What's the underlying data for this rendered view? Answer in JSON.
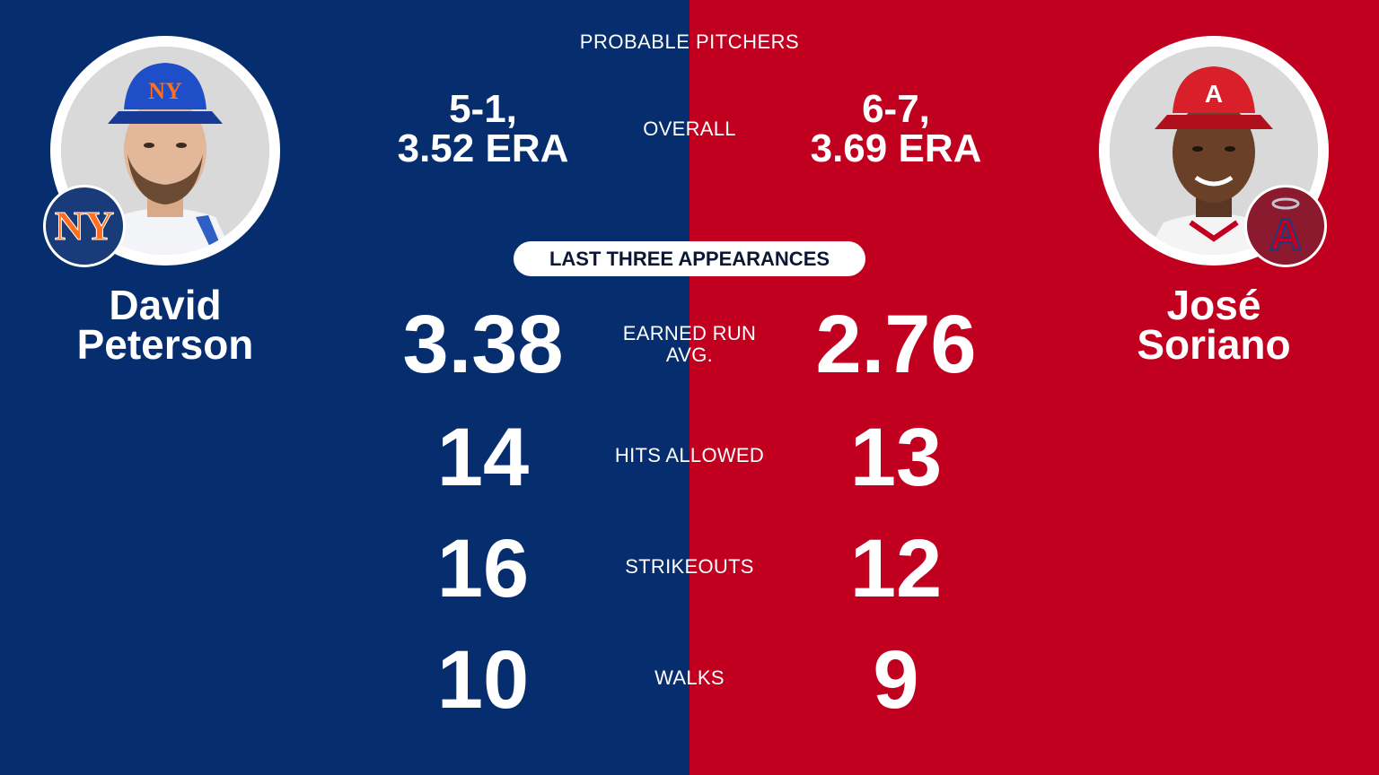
{
  "header": {
    "title": "PROBABLE PITCHERS"
  },
  "colors": {
    "left_bg": "#062d6e",
    "right_bg": "#c1001f"
  },
  "pitchers": {
    "left": {
      "first_name": "David",
      "last_name": "Peterson",
      "team_icon": "mets-logo-icon",
      "photo_icon": "player-photo-icon",
      "overall_record": "5-1,",
      "overall_era": "3.52 ERA"
    },
    "right": {
      "first_name": "José",
      "last_name": "Soriano",
      "team_icon": "angels-logo-icon",
      "photo_icon": "player-photo-icon",
      "overall_record": "6-7,",
      "overall_era": "3.69 ERA"
    }
  },
  "labels": {
    "overall": "OVERALL",
    "last_three": "LAST THREE APPEARANCES",
    "era_line1": "EARNED RUN",
    "era_line2": "AVG.",
    "hits": "HITS ALLOWED",
    "strikeouts": "STRIKEOUTS",
    "walks": "WALKS"
  },
  "stats": {
    "left": {
      "era": "3.38",
      "hits": "14",
      "strikeouts": "16",
      "walks": "10"
    },
    "right": {
      "era": "2.76",
      "hits": "13",
      "strikeouts": "12",
      "walks": "9"
    }
  }
}
